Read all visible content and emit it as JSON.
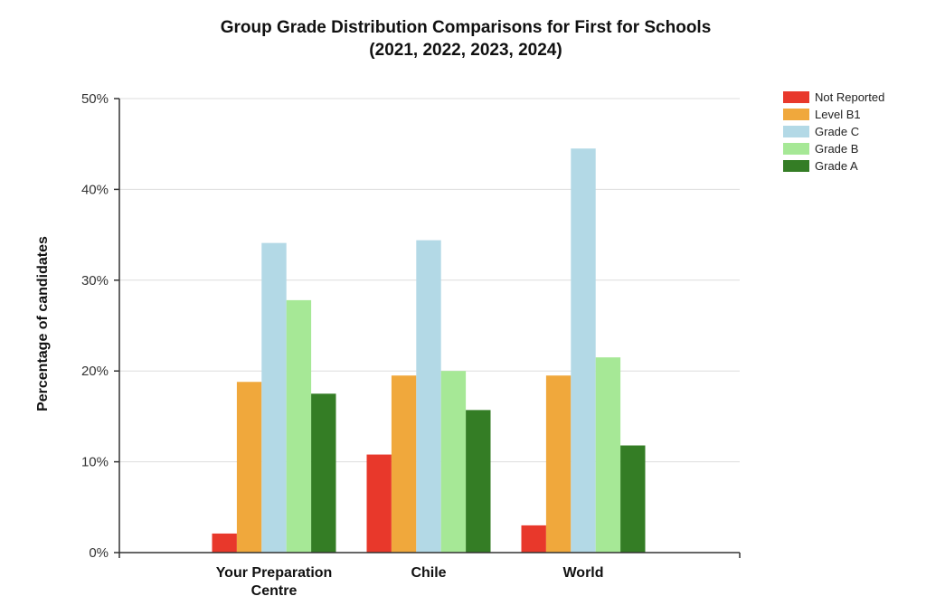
{
  "chart_data": {
    "type": "bar",
    "title": "Group Grade Distribution Comparisons for First for Schools",
    "subtitle": "(2021, 2022, 2023, 2024)",
    "ylabel": "Percentage of candidates",
    "xlabel": "",
    "ylim": [
      0,
      50
    ],
    "yticks": [
      {
        "value": 0,
        "label": "0%"
      },
      {
        "value": 10,
        "label": "10%"
      },
      {
        "value": 20,
        "label": "20%"
      },
      {
        "value": 30,
        "label": "30%"
      },
      {
        "value": 40,
        "label": "40%"
      },
      {
        "value": 50,
        "label": "50%"
      }
    ],
    "grid": true,
    "legend_position": "top-right",
    "categories": [
      [
        "Your Preparation",
        "Centre"
      ],
      [
        "Chile"
      ],
      [
        "World"
      ]
    ],
    "series": [
      {
        "name": "Not Reported",
        "color": "#e8382b",
        "values": [
          2.1,
          10.8,
          3.0
        ]
      },
      {
        "name": "Level B1",
        "color": "#f0a83c",
        "values": [
          18.8,
          19.5,
          19.5
        ]
      },
      {
        "name": "Grade C",
        "color": "#b3d9e6",
        "values": [
          34.1,
          34.4,
          44.5
        ]
      },
      {
        "name": "Grade B",
        "color": "#a6e896",
        "values": [
          27.8,
          20.0,
          21.5
        ]
      },
      {
        "name": "Grade A",
        "color": "#347d25",
        "values": [
          17.5,
          15.7,
          11.8
        ]
      }
    ]
  }
}
